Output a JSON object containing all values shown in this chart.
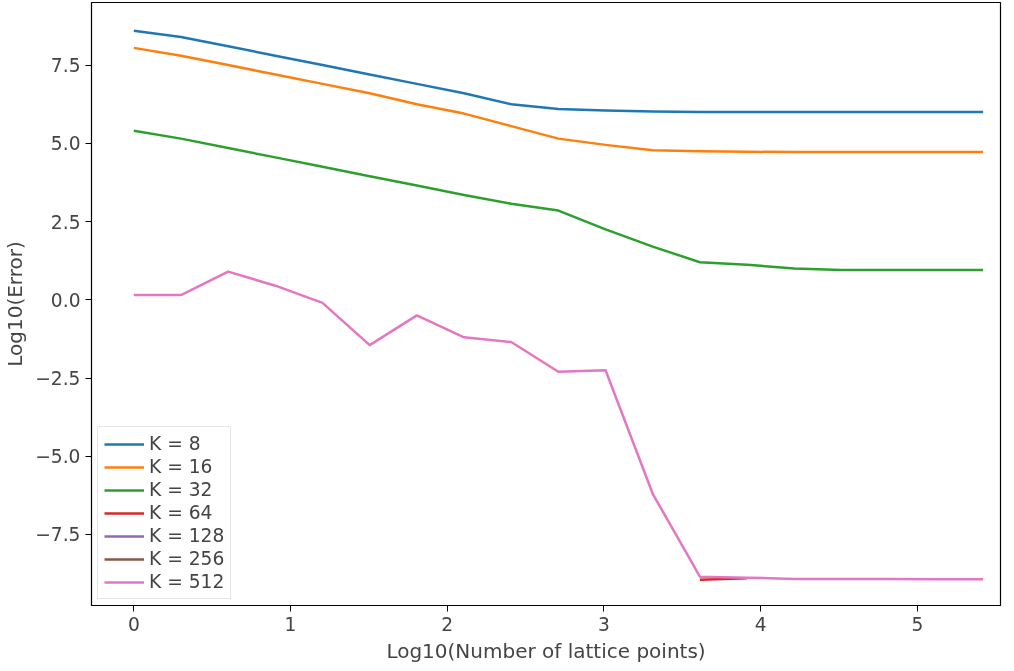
{
  "chart_data": {
    "type": "line",
    "xlabel": "Log10(Number of lattice points)",
    "ylabel": "Log10(Error)",
    "x": [
      0,
      0.301,
      0.602,
      0.903,
      1.204,
      1.505,
      1.806,
      2.107,
      2.408,
      2.709,
      3.01,
      3.311,
      3.612,
      3.913,
      4.214,
      4.515,
      4.816,
      5.118,
      5.419
    ],
    "series": [
      {
        "name": "K = 8",
        "color": "#1f77b4",
        "values": [
          8.6,
          8.4,
          8.1,
          7.8,
          7.5,
          7.2,
          6.9,
          6.6,
          6.25,
          6.1,
          6.05,
          6.02,
          6.0,
          6.0,
          6.0,
          6.0,
          6.0,
          6.0,
          6.0
        ]
      },
      {
        "name": "K = 16",
        "color": "#ff7f0e",
        "values": [
          8.05,
          7.8,
          7.5,
          7.2,
          6.9,
          6.6,
          6.25,
          5.95,
          5.55,
          5.15,
          4.95,
          4.78,
          4.75,
          4.73,
          4.72,
          4.72,
          4.72,
          4.72,
          4.72
        ]
      },
      {
        "name": "K = 32",
        "color": "#2ca02c",
        "values": [
          5.4,
          5.15,
          4.85,
          4.55,
          4.25,
          3.95,
          3.65,
          3.35,
          3.07,
          2.85,
          2.25,
          1.7,
          1.2,
          1.12,
          1.0,
          0.95,
          0.95,
          0.95,
          0.95
        ]
      },
      {
        "name": "K = 64",
        "color": "#d62728",
        "values": [
          null,
          null,
          null,
          null,
          null,
          null,
          null,
          null,
          null,
          null,
          null,
          null,
          -8.95,
          -8.9,
          null,
          null,
          null,
          null,
          null
        ]
      },
      {
        "name": "K = 128",
        "color": "#9467bd",
        "values": [
          null,
          null,
          null,
          null,
          null,
          null,
          null,
          null,
          null,
          null,
          null,
          null,
          null,
          null,
          null,
          null,
          null,
          null,
          null
        ]
      },
      {
        "name": "K = 256",
        "color": "#8c564b",
        "values": [
          null,
          null,
          null,
          null,
          null,
          null,
          null,
          null,
          null,
          null,
          null,
          null,
          null,
          null,
          null,
          null,
          null,
          null,
          null
        ]
      },
      {
        "name": "K = 512",
        "color": "#e377c2",
        "values": [
          0.15,
          0.15,
          0.9,
          0.45,
          -0.1,
          -1.45,
          -0.5,
          -1.2,
          -1.35,
          -2.3,
          -2.25,
          -6.2,
          -8.85,
          -8.88,
          -8.92,
          -8.92,
          -8.92,
          -8.93,
          -8.93
        ]
      }
    ],
    "xlim": [
      -0.27,
      5.53
    ],
    "ylim": [
      -9.77,
      9.5
    ],
    "xticks": [
      0,
      1,
      2,
      3,
      4,
      5
    ],
    "yticks": [
      {
        "value": -7.5,
        "label": "−7.5"
      },
      {
        "value": -5,
        "label": "−5.0"
      },
      {
        "value": -2.5,
        "label": "−2.5"
      },
      {
        "value": 0,
        "label": "0.0"
      },
      {
        "value": 2.5,
        "label": "2.5"
      },
      {
        "value": 5,
        "label": "5.0"
      },
      {
        "value": 7.5,
        "label": "7.5"
      }
    ],
    "grid": false,
    "legend": "bottom left",
    "marker": "none",
    "line_style": "solid"
  }
}
